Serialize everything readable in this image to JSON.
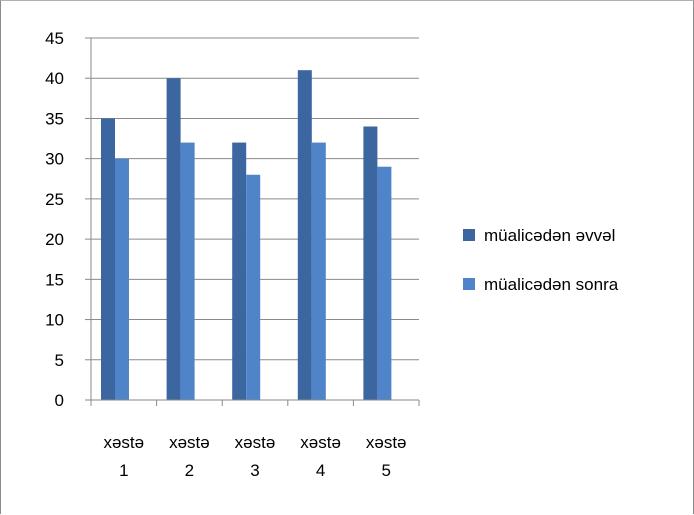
{
  "chart_data": {
    "type": "bar",
    "categories": [
      [
        "xəstə",
        "1"
      ],
      [
        "xəstə",
        "2"
      ],
      [
        "xəstə",
        "3"
      ],
      [
        "xəstə",
        "4"
      ],
      [
        "xəstə",
        "5"
      ]
    ],
    "series": [
      {
        "name": "müalicədən əvvəl",
        "values": [
          35,
          40,
          32,
          41,
          34
        ],
        "color": "#3b66a0"
      },
      {
        "name": "müalicədən sonra",
        "values": [
          30,
          32,
          28,
          32,
          29
        ],
        "color": "#4f84c9"
      }
    ],
    "ylim": [
      0,
      45
    ],
    "yticks": [
      0,
      5,
      10,
      15,
      20,
      25,
      30,
      35,
      40,
      45
    ],
    "grid": true,
    "legend": "right"
  }
}
